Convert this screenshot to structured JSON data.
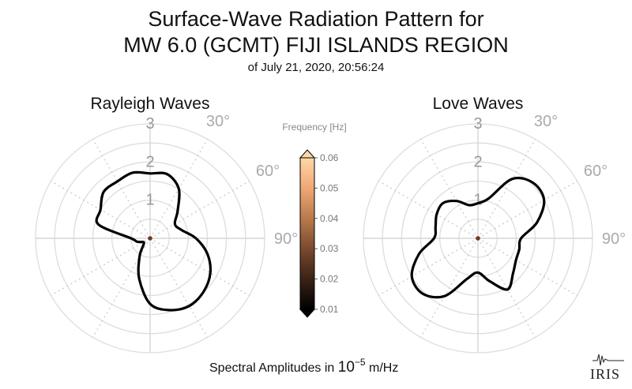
{
  "title": {
    "line1": "Surface-Wave Radiation Pattern for",
    "line2": "MW 6.0 (GCMT) FIJI ISLANDS REGION",
    "subtitle": "of July 21, 2020, 20:56:24"
  },
  "footer": {
    "prefix": "Spectral Amplitudes in ",
    "base": "10",
    "exponent": "−5",
    "suffix": " m/Hz"
  },
  "logo": {
    "text": "IRIS"
  },
  "colorbar": {
    "title": "Frequency [Hz]",
    "ticks": [
      "0.01",
      "0.02",
      "0.03",
      "0.04",
      "0.05",
      "0.06"
    ],
    "range": [
      0.01,
      0.06
    ],
    "colors": [
      "#000000",
      "#3a2316",
      "#7a4a2e",
      "#b97a4c",
      "#f0a774",
      "#ffd8a8"
    ]
  },
  "chart_data": [
    {
      "type": "polar-line",
      "title": "Rayleigh Waves",
      "radial_ticks": [
        "1",
        "2",
        "3"
      ],
      "radial_range": [
        0,
        3
      ],
      "angle_labels": [
        "30°",
        "60°",
        "90°"
      ],
      "theta_deg": [
        0,
        15,
        30,
        45,
        60,
        75,
        90,
        105,
        120,
        135,
        150,
        165,
        180,
        195,
        210,
        225,
        240,
        255,
        270,
        285,
        300,
        315,
        330,
        345
      ],
      "r": [
        1.7,
        1.74,
        1.5,
        1.02,
        0.75,
        0.85,
        1.2,
        1.55,
        1.82,
        1.98,
        2.05,
        1.95,
        1.72,
        1.1,
        0.55,
        0.25,
        0.2,
        0.35,
        0.5,
        1.4,
        1.5,
        1.72,
        1.72,
        1.78
      ],
      "line_color": "#000000",
      "center_color": "#6b3a24"
    },
    {
      "type": "polar-line",
      "title": "Love Waves",
      "radial_ticks": [
        "1",
        "2",
        "3"
      ],
      "radial_range": [
        0,
        3
      ],
      "angle_labels": [
        "30°",
        "60°",
        "90°"
      ],
      "theta_deg": [
        0,
        15,
        30,
        45,
        60,
        75,
        90,
        105,
        120,
        135,
        150,
        165,
        180,
        195,
        210,
        225,
        240,
        255,
        270,
        285,
        300,
        315,
        330,
        345
      ],
      "r": [
        0.92,
        1.08,
        1.8,
        2.05,
        2.0,
        1.6,
        1.13,
        1.12,
        1.15,
        1.3,
        1.55,
        1.16,
        0.9,
        1.1,
        1.75,
        2.05,
        2.0,
        1.6,
        1.15,
        1.15,
        1.25,
        1.3,
        1.13,
        0.9
      ],
      "line_color": "#000000",
      "center_color": "#6b3a24"
    }
  ]
}
